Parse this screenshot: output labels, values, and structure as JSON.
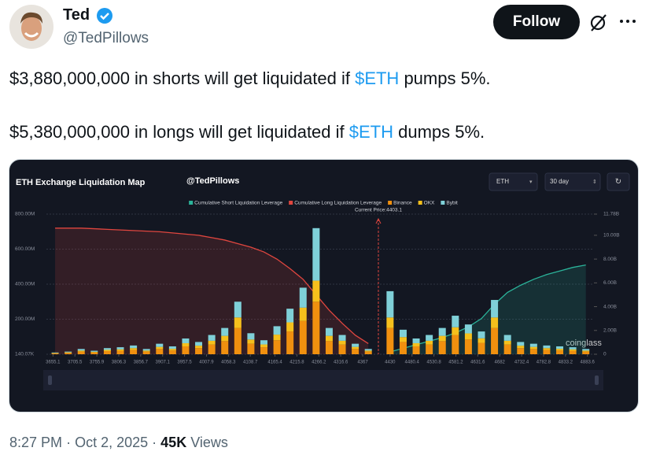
{
  "author": {
    "name": "Ted",
    "handle": "@TedPillows"
  },
  "follow_button": "Follow",
  "tweet_lines": [
    [
      "$3,880,000,000 in shorts will get liquidated if ",
      "$ETH",
      " pumps 5%."
    ],
    [
      "$5,380,000,000 in longs will get liquidated if ",
      "$ETH",
      " dumps 5%."
    ]
  ],
  "chart_data": {
    "type": "bar",
    "stacked": true,
    "title": "ETH Exchange Liquidation Map",
    "subtitle": "@TedPillows",
    "symbol_select": "ETH",
    "range_select": "30 day",
    "brand": "coinglass",
    "annotation": {
      "label": "Current Price:4403.1",
      "value": 4403.1,
      "color": "#e0463f"
    },
    "grid": true,
    "x": [
      3660,
      3690,
      3720,
      3750,
      3780,
      3810,
      3840,
      3870,
      3900,
      3930,
      3960,
      3990,
      4020,
      4050,
      4080,
      4110,
      4140,
      4170,
      4200,
      4230,
      4260,
      4290,
      4320,
      4350,
      4380,
      4430,
      4460,
      4490,
      4520,
      4550,
      4580,
      4610,
      4640,
      4670,
      4700,
      4730,
      4760,
      4790,
      4820,
      4850,
      4880
    ],
    "xlim": [
      3640,
      4895
    ],
    "xticks": [
      3655.1,
      3705.5,
      3755.9,
      3806.3,
      3856.7,
      3907.1,
      3957.5,
      4007.9,
      4058.3,
      4108.7,
      4165.4,
      4215.8,
      4266.2,
      4316.6,
      4367,
      4430,
      4480.4,
      4530.8,
      4581.2,
      4631.6,
      4682,
      4732.4,
      4782.8,
      4833.2,
      4883.6
    ],
    "ylim": [
      0,
      800
    ],
    "yticks": [
      {
        "value": 0.14007,
        "label": "140.07K"
      },
      {
        "value": 200,
        "label": "200.00M"
      },
      {
        "value": 400,
        "label": "400.00M"
      },
      {
        "value": 600,
        "label": "600.00M"
      },
      {
        "value": 800,
        "label": "800.00M"
      }
    ],
    "y2lim": [
      0,
      11.78
    ],
    "y2ticks": [
      0,
      {
        "value": 2,
        "label": "2.00B"
      },
      {
        "value": 4,
        "label": "4.00B"
      },
      {
        "value": 6,
        "label": "6.00B"
      },
      {
        "value": 8,
        "label": "8.00B"
      },
      {
        "value": 10,
        "label": "10.00B"
      },
      {
        "value": 11.78,
        "label": "11.78B"
      }
    ],
    "series": [
      {
        "name": "Cumulative Short Liquidation Leverage",
        "type": "line",
        "axis": "y2",
        "color": "#2bb39a",
        "values": [
          null,
          null,
          null,
          null,
          null,
          null,
          null,
          null,
          null,
          null,
          null,
          null,
          null,
          null,
          null,
          null,
          null,
          null,
          null,
          null,
          null,
          null,
          null,
          null,
          null,
          0.2,
          0.5,
          0.8,
          1.1,
          1.4,
          1.8,
          2.3,
          3.0,
          4.2,
          5.2,
          5.8,
          6.3,
          6.7,
          7.0,
          7.3,
          7.5
        ]
      },
      {
        "name": "Cumulative Long Liquidation Leverage",
        "type": "line",
        "axis": "y2",
        "color": "#e0463f",
        "values": [
          10.6,
          10.6,
          10.6,
          10.55,
          10.5,
          10.45,
          10.4,
          10.35,
          10.3,
          10.2,
          10.1,
          10.0,
          9.8,
          9.6,
          9.3,
          9.0,
          8.6,
          8.0,
          7.2,
          6.3,
          5.0,
          3.7,
          2.6,
          1.6,
          0.9,
          null,
          null,
          null,
          null,
          null,
          null,
          null,
          null,
          null,
          null,
          null,
          null,
          null,
          null,
          null,
          null
        ]
      },
      {
        "name": "Binance",
        "type": "bar",
        "color": "#f0900f",
        "values": [
          5,
          8,
          15,
          10,
          18,
          20,
          25,
          15,
          30,
          22,
          45,
          35,
          55,
          75,
          150,
          60,
          40,
          80,
          130,
          190,
          300,
          75,
          55,
          30,
          15,
          150,
          70,
          45,
          55,
          75,
          110,
          85,
          65,
          150,
          55,
          35,
          30,
          25,
          22,
          20,
          15
        ]
      },
      {
        "name": "OKX",
        "type": "bar",
        "color": "#f6c01c",
        "values": [
          2,
          3,
          6,
          4,
          7,
          8,
          10,
          6,
          12,
          9,
          18,
          14,
          22,
          30,
          60,
          24,
          16,
          32,
          52,
          76,
          120,
          30,
          22,
          12,
          6,
          60,
          28,
          18,
          22,
          30,
          44,
          34,
          26,
          60,
          22,
          14,
          12,
          10,
          9,
          8,
          6
        ]
      },
      {
        "name": "Bybit",
        "type": "bar",
        "color": "#7fd0d8",
        "values": [
          3,
          4,
          9,
          6,
          10,
          12,
          15,
          9,
          18,
          14,
          27,
          21,
          33,
          45,
          90,
          36,
          24,
          48,
          78,
          114,
          300,
          45,
          33,
          18,
          9,
          150,
          42,
          27,
          33,
          45,
          66,
          51,
          39,
          100,
          33,
          21,
          18,
          15,
          14,
          12,
          9
        ]
      }
    ]
  },
  "footer": {
    "time": "8:27 PM",
    "separator": "·",
    "date": "Oct 2, 2025",
    "views_count": "45K",
    "views_label": "Views"
  }
}
